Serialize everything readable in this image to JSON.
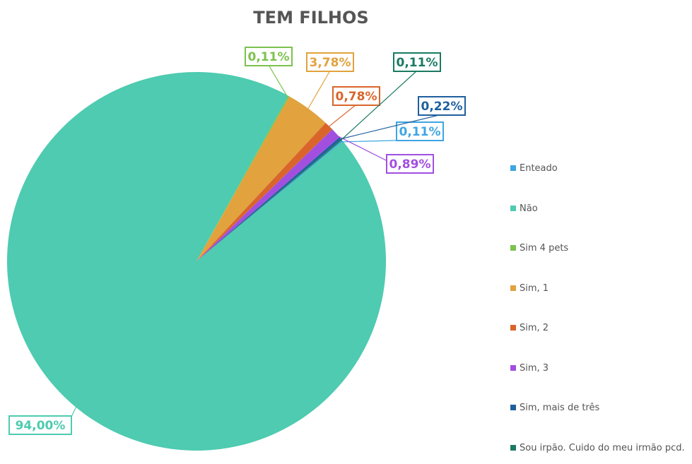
{
  "chart_data": {
    "type": "pie",
    "title": "TEM FILHOS",
    "categories": [
      "Enteado",
      "Não",
      "Sim 4 pets",
      "Sim, 1",
      "Sim, 2",
      "Sim, 3",
      "Sim, mais de três",
      "Sou irpão. Cuido do meu irmão pcd."
    ],
    "values": [
      0.11,
      94.0,
      0.11,
      3.78,
      0.78,
      0.89,
      0.22,
      0.11
    ],
    "value_labels": [
      "0,11%",
      "94,00%",
      "0,11%",
      "3,78%",
      "0,78%",
      "0,89%",
      "0,22%",
      "0,11%"
    ],
    "colors": [
      "#3ea6e2",
      "#4ecbb0",
      "#7cc24e",
      "#e2a23e",
      "#d9652b",
      "#a24fe0",
      "#1f5f9e",
      "#1b7a62"
    ],
    "legend": "right"
  }
}
